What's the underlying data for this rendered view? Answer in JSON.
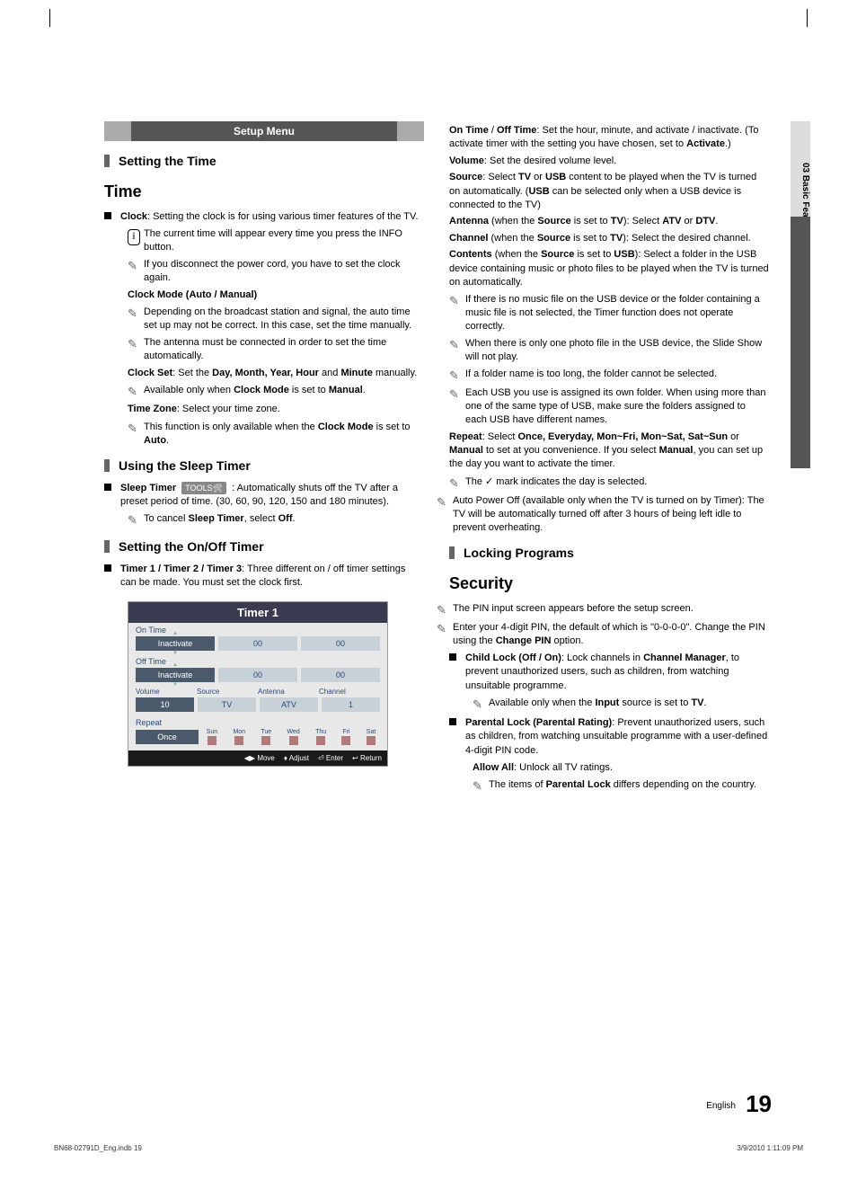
{
  "page": {
    "setup_header": "Setup Menu",
    "side_tab": "03   Basic Features",
    "page_number": "19",
    "page_label": "English",
    "footer_left": "BN68-02791D_Eng.indb   19",
    "footer_right": "3/9/2010   1:11:09 PM"
  },
  "left": {
    "h_setting_time": "Setting the Time",
    "h_time": "Time",
    "clock_intro_bold": "Clock",
    "clock_intro": ": Setting the clock is for using various timer features of the TV.",
    "clock_info": "The current time will appear every time you press the INFO button.",
    "clock_note1": "If you disconnect the power cord, you have to set the clock again.",
    "clock_mode_h": "Clock Mode (Auto / Manual)",
    "clock_mode_n1": "Depending on the broadcast station and signal, the auto time set up may not be correct. In this case, set the time manually.",
    "clock_mode_n2": "The antenna must be connected in order to set the time automatically.",
    "clock_set_b": "Clock Set",
    "clock_set_mid": ": Set the ",
    "clock_set_b2": "Day, Month, Year, Hour",
    "clock_set_mid2": " and ",
    "clock_set_b3": "Minute",
    "clock_set_end": " manually.",
    "clock_set_n1a": "Available only when ",
    "clock_set_n1b": "Clock Mode",
    "clock_set_n1c": " is set to ",
    "clock_set_n1d": "Manual",
    "clock_set_n1e": ".",
    "timezone_b": "Time Zone",
    "timezone": ": Select your time zone.",
    "timezone_n1a": "This function is only available when the ",
    "timezone_n1b": "Clock Mode",
    "timezone_n1c": " is set to ",
    "timezone_n1d": "Auto",
    "timezone_n1e": ".",
    "h_sleep": "Using the Sleep Timer",
    "sleep_b": "Sleep Timer",
    "sleep_tools": "TOOLS",
    "sleep_text": " : Automatically shuts off the TV after a preset period of time. (30, 60, 90, 120, 150 and 180 minutes).",
    "sleep_n1a": "To cancel ",
    "sleep_n1b": "Sleep Timer",
    "sleep_n1c": ", select ",
    "sleep_n1d": "Off",
    "sleep_n1e": ".",
    "h_onoff": "Setting the On/Off Timer",
    "onoff_b": "Timer 1 / Timer 2 / Timer 3",
    "onoff_text": ": Three different on / off timer settings can be made. You must set the clock first.",
    "timer": {
      "title": "Timer 1",
      "on_time": "On Time",
      "off_time": "Off Time",
      "inactivate": "Inactivate",
      "zero": "00",
      "volume_l": "Volume",
      "source_l": "Source",
      "antenna_l": "Antenna",
      "channel_l": "Channel",
      "volume_v": "10",
      "source_v": "TV",
      "antenna_v": "ATV",
      "channel_v": "1",
      "repeat_l": "Repeat",
      "once": "Once",
      "days": [
        "Sun",
        "Mon",
        "Tue",
        "Wed",
        "Thu",
        "Fri",
        "Sat"
      ],
      "footer": {
        "move": "Move",
        "adjust": "Adjust",
        "enter": "Enter",
        "return": "Return"
      }
    }
  },
  "right": {
    "on_off_b1": "On Time",
    "on_off_slash": " / ",
    "on_off_b2": "Off Time",
    "on_off_text": ": Set the hour, minute, and activate / inactivate. (To activate timer with the setting you have chosen, set to ",
    "on_off_b3": "Activate",
    "on_off_end": ".)",
    "volume_b": "Volume",
    "volume_text": ": Set the desired volume level.",
    "source_b": "Source",
    "source_text1": ": Select ",
    "source_text2": " or ",
    "source_text3": " content to be played when the TV is turned on automatically. (",
    "source_text4": " can be selected only when a USB device is connected to the TV)",
    "tv": "TV",
    "usb": "USB",
    "antenna_b": "Antenna",
    "antenna_text1": " (when the ",
    "antenna_text2": " is set to ",
    "antenna_text3": "): Select ",
    "antenna_text4": " or ",
    "atv": "ATV",
    "dtv": "DTV",
    "channel_b": "Channel",
    "channel_text": "): Select the desired channel.",
    "contents_b": "Contents",
    "contents_text1": " (when the ",
    "contents_text2": " is set to ",
    "contents_text3": "): Select a folder in the USB device containing music or photo files to be played when the TV is turned on automatically.",
    "note_c1": "If there is no music file on the USB device or the folder containing a music file is not selected, the Timer function does not operate correctly.",
    "note_c2": "When there is only one photo file in the USB device, the Slide Show will not play.",
    "note_c3": "If a folder name is too long, the folder cannot be selected.",
    "note_c4": "Each USB you use is assigned its own folder. When using more than one of the same type of USB, make sure the folders assigned to each USB have different names.",
    "repeat_b": "Repeat",
    "repeat_text1": ": Select ",
    "repeat_opts": "Once, Everyday, Mon~Fri, Mon~Sat, Sat~Sun",
    "repeat_text2": " or ",
    "repeat_manual": "Manual",
    "repeat_text3": " to set at you convenience. If you select ",
    "repeat_text4": ", you can set up the day you want to activate the timer.",
    "repeat_mark": "The ✓ mark indicates the day is selected.",
    "autopower": "Auto Power Off (available only when the TV is turned on by Timer): The TV will be automatically turned off after 3 hours of being left idle to prevent overheating.",
    "h_locking": "Locking Programs",
    "h_security": "Security",
    "sec_n1": "The PIN input screen appears before the setup screen.",
    "sec_n2a": "Enter your 4-digit PIN, the default of which is \"0-0-0-0\". Change the PIN using the ",
    "sec_n2b": "Change PIN",
    "sec_n2c": " option.",
    "childlock_b": "Child Lock (Off / On)",
    "childlock_text1": ": Lock channels in ",
    "childlock_b2": "Channel Manager",
    "childlock_text2": ", to prevent unauthorized users, such as children, from watching unsuitable programme.",
    "childlock_n1a": "Available only when the ",
    "childlock_n1b": "Input",
    "childlock_n1c": " source is set to ",
    "childlock_n1d": "TV",
    "parental_b": "Parental Lock (Parental Rating)",
    "parental_text": ": Prevent unauthorized users, such as children, from watching unsuitable programme with a user-defined 4-digit PIN code.",
    "allow_b": "Allow All",
    "allow_text": ": Unlock all TV ratings.",
    "parental_n1a": "The items of ",
    "parental_n1b": "Parental Lock",
    "parental_n1c": " differs depending on the country."
  }
}
